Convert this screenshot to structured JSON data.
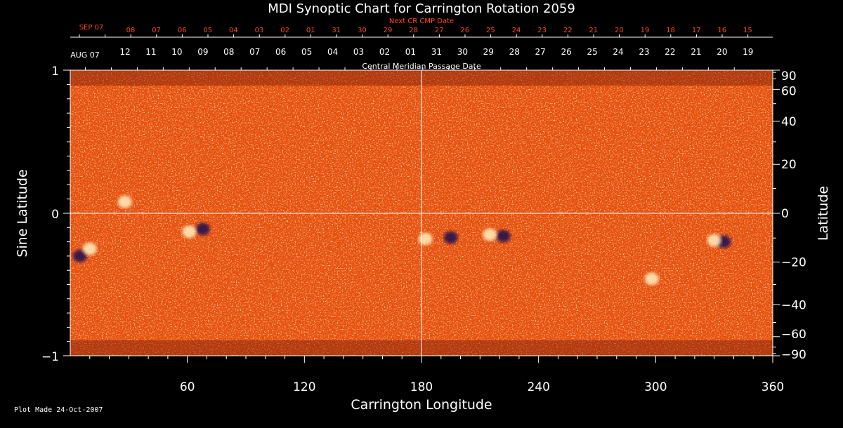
{
  "chart_data": {
    "type": "heatmap",
    "title": "MDI Synoptic Chart for Carrington Rotation 2059",
    "xlabel": "Carrington Longitude",
    "ylabel_left": "Sine Latitude",
    "ylabel_right": "Latitude",
    "xlim": [
      0,
      360
    ],
    "ylim": [
      -1,
      1
    ],
    "x_ticks": [
      "60",
      "120",
      "180",
      "240",
      "300",
      "360"
    ],
    "y_ticks_left": [
      "1",
      "0",
      "−1"
    ],
    "y_ticks_right": [
      "90",
      "60",
      "40",
      "20",
      "0",
      "−20",
      "−40",
      "−60",
      "−90"
    ],
    "top_axis_title": "Central Meridian Passage Date",
    "top_axis_start_label": "AUG 07",
    "top_axis_dates": [
      "12",
      "11",
      "10",
      "09",
      "08",
      "07",
      "06",
      "05",
      "04",
      "03",
      "02",
      "01",
      "31",
      "30",
      "29",
      "28",
      "27",
      "26",
      "25",
      "24",
      "23",
      "22",
      "21",
      "20",
      "19"
    ],
    "next_axis_title": "Next CR CMP Date",
    "next_axis_start_label": "SEP 07",
    "next_axis_dates": [
      "08",
      "07",
      "06",
      "05",
      "04",
      "03",
      "02",
      "01",
      "31",
      "30",
      "29",
      "28",
      "27",
      "26",
      "25",
      "24",
      "23",
      "22",
      "21",
      "20",
      "19",
      "18",
      "17",
      "16",
      "15"
    ],
    "colors": {
      "field": "#f05a10",
      "positive": "#fff0c0",
      "negative": "#1a1050",
      "axes": "#ffffff",
      "next_axis": "#ff4a1a"
    },
    "active_regions": [
      {
        "lon": 68,
        "sinlat": -0.11,
        "polarity": "negative"
      },
      {
        "lon": 61,
        "sinlat": -0.13,
        "polarity": "positive"
      },
      {
        "lon": 195,
        "sinlat": -0.17,
        "polarity": "negative"
      },
      {
        "lon": 182,
        "sinlat": -0.18,
        "polarity": "positive"
      },
      {
        "lon": 222,
        "sinlat": -0.16,
        "polarity": "negative"
      },
      {
        "lon": 215,
        "sinlat": -0.15,
        "polarity": "positive"
      },
      {
        "lon": 5,
        "sinlat": -0.3,
        "polarity": "negative"
      },
      {
        "lon": 10,
        "sinlat": -0.25,
        "polarity": "positive"
      },
      {
        "lon": 335,
        "sinlat": -0.2,
        "polarity": "negative"
      },
      {
        "lon": 330,
        "sinlat": -0.19,
        "polarity": "positive"
      },
      {
        "lon": 28,
        "sinlat": 0.08,
        "polarity": "positive"
      },
      {
        "lon": 298,
        "sinlat": -0.46,
        "polarity": "positive"
      }
    ]
  },
  "footer": "Plot Made 24-Oct-2007"
}
